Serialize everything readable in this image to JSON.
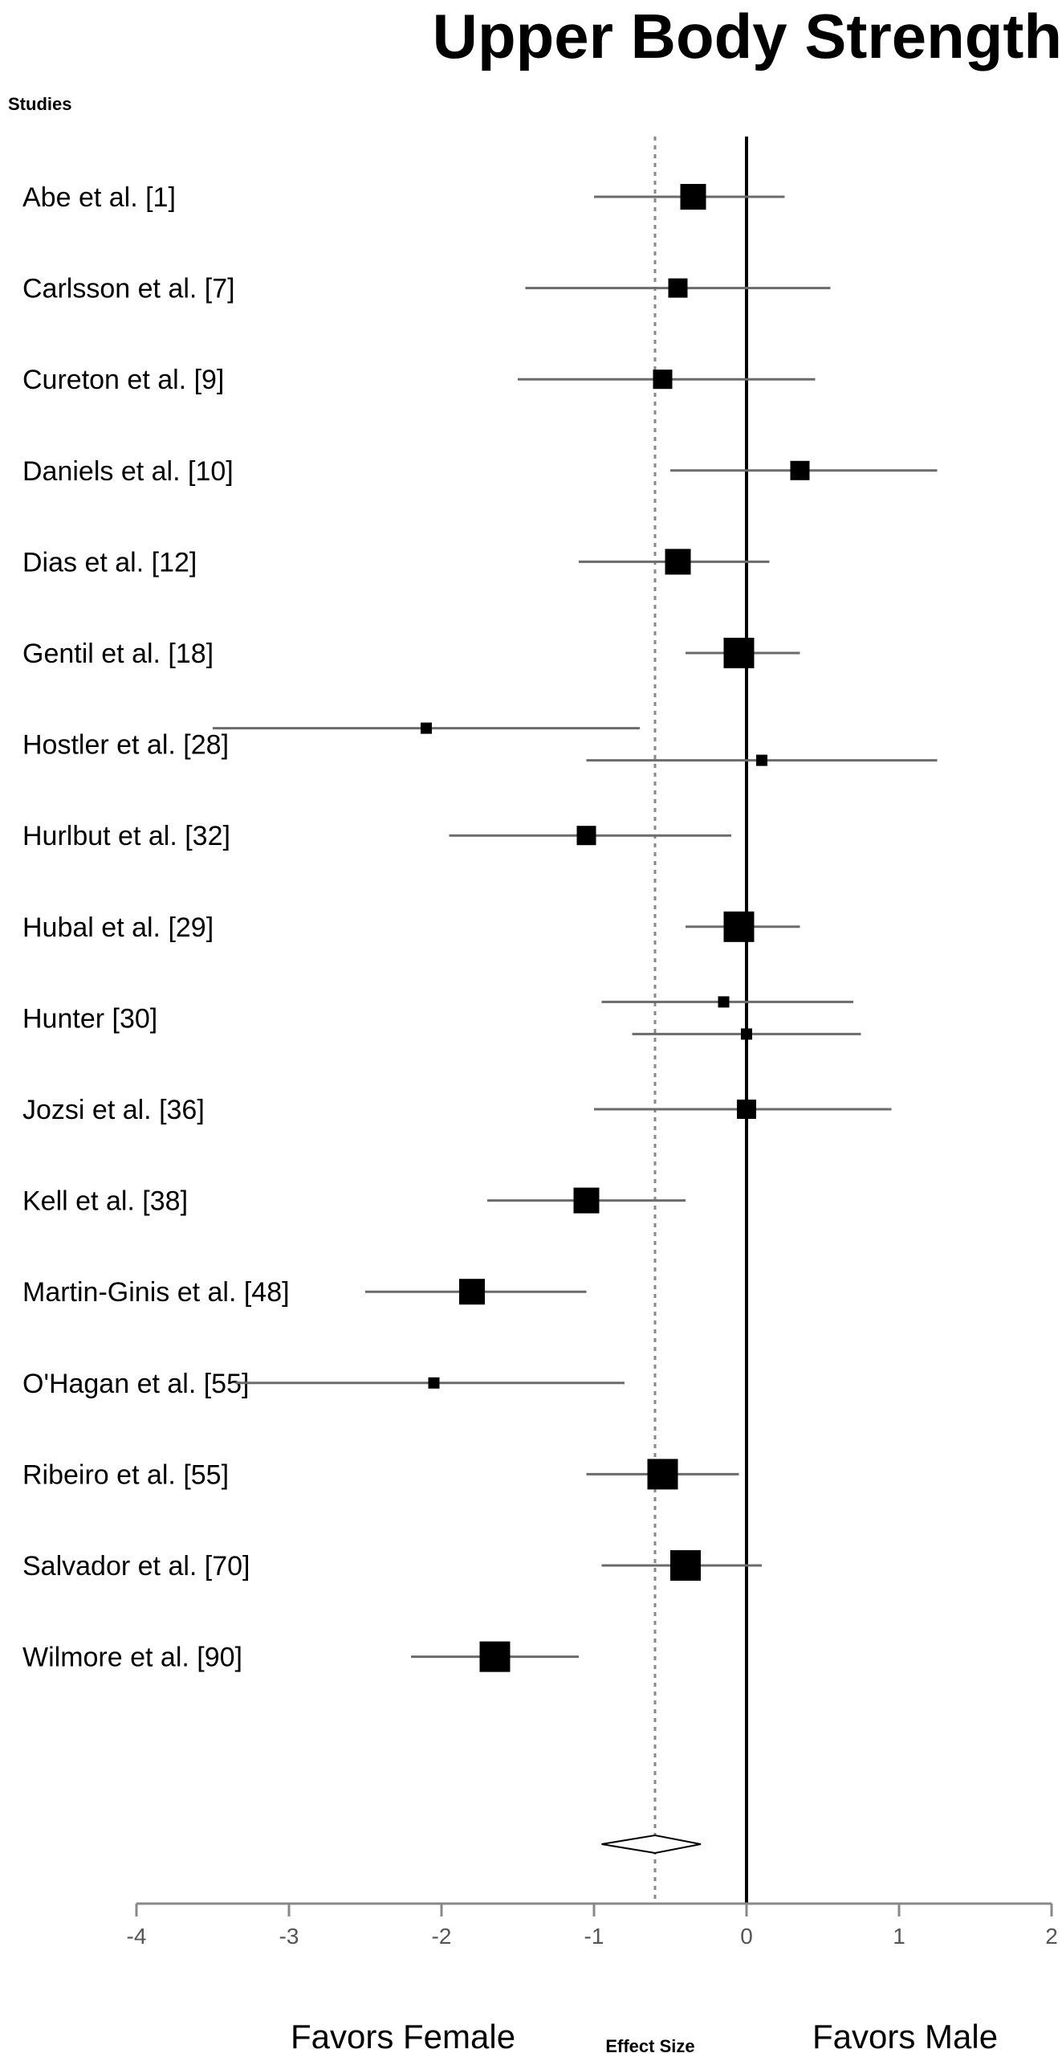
{
  "chart_data": {
    "type": "forest",
    "title": "Upper Body Strength",
    "column_header": "Studies",
    "xlabel": "Effect Size",
    "xlim": [
      -4,
      2
    ],
    "x_ticks": [
      -4,
      -3,
      -2,
      -1,
      0,
      1,
      2
    ],
    "x_tick_labels": [
      "-4",
      "-3",
      "-2",
      "-1",
      "0",
      "1",
      "2"
    ],
    "favors_left": "Favors Female",
    "favors_right": "Favors Male",
    "reference_line": 0,
    "pooled_effect_line": -0.6,
    "studies": [
      {
        "label": "Abe et al. [1]",
        "estimates": [
          {
            "es": -0.35,
            "lo": -1.0,
            "hi": 0.25,
            "w": 3
          }
        ]
      },
      {
        "label": "Carlsson et al. [7]",
        "estimates": [
          {
            "es": -0.45,
            "lo": -1.45,
            "hi": 0.55,
            "w": 2
          }
        ]
      },
      {
        "label": "Cureton et al. [9]",
        "estimates": [
          {
            "es": -0.55,
            "lo": -1.5,
            "hi": 0.45,
            "w": 2
          }
        ]
      },
      {
        "label": "Daniels et al. [10]",
        "estimates": [
          {
            "es": 0.35,
            "lo": -0.5,
            "hi": 1.25,
            "w": 2
          }
        ]
      },
      {
        "label": "Dias et al. [12]",
        "estimates": [
          {
            "es": -0.45,
            "lo": -1.1,
            "hi": 0.15,
            "w": 3
          }
        ]
      },
      {
        "label": "Gentil et al. [18]",
        "estimates": [
          {
            "es": -0.05,
            "lo": -0.4,
            "hi": 0.35,
            "w": 4
          }
        ]
      },
      {
        "label": "Hostler et al. [28]",
        "estimates": [
          {
            "es": -2.1,
            "lo": -3.5,
            "hi": -0.7,
            "w": 1
          },
          {
            "es": 0.1,
            "lo": -1.05,
            "hi": 1.25,
            "w": 1
          }
        ]
      },
      {
        "label": "Hurlbut et al. [32]",
        "estimates": [
          {
            "es": -1.05,
            "lo": -1.95,
            "hi": -0.1,
            "w": 2
          }
        ]
      },
      {
        "label": "Hubal et al. [29]",
        "estimates": [
          {
            "es": -0.05,
            "lo": -0.4,
            "hi": 0.35,
            "w": 4
          }
        ]
      },
      {
        "label": "Hunter [30]",
        "estimates": [
          {
            "es": -0.15,
            "lo": -0.95,
            "hi": 0.7,
            "w": 1
          },
          {
            "es": 0.0,
            "lo": -0.75,
            "hi": 0.75,
            "w": 1
          }
        ]
      },
      {
        "label": "Jozsi et al. [36]",
        "estimates": [
          {
            "es": 0.0,
            "lo": -1.0,
            "hi": 0.95,
            "w": 2
          }
        ]
      },
      {
        "label": "Kell et al. [38]",
        "estimates": [
          {
            "es": -1.05,
            "lo": -1.7,
            "hi": -0.4,
            "w": 3
          }
        ]
      },
      {
        "label": "Martin-Ginis et al. [48]",
        "estimates": [
          {
            "es": -1.8,
            "lo": -2.5,
            "hi": -1.05,
            "w": 3
          }
        ]
      },
      {
        "label": "O'Hagan et al. [55]",
        "estimates": [
          {
            "es": -2.05,
            "lo": -3.35,
            "hi": -0.8,
            "w": 1
          }
        ]
      },
      {
        "label": "Ribeiro et al. [55]",
        "estimates": [
          {
            "es": -0.55,
            "lo": -1.05,
            "hi": -0.05,
            "w": 4
          }
        ]
      },
      {
        "label": "Salvador et al. [70]",
        "estimates": [
          {
            "es": -0.4,
            "lo": -0.95,
            "hi": 0.1,
            "w": 4
          }
        ]
      },
      {
        "label": "Wilmore et al. [90]",
        "estimates": [
          {
            "es": -1.65,
            "lo": -2.2,
            "hi": -1.1,
            "w": 4
          }
        ]
      }
    ],
    "pooled": {
      "es": -0.6,
      "lo": -0.95,
      "hi": -0.3
    },
    "grid": false,
    "legend": "none"
  }
}
